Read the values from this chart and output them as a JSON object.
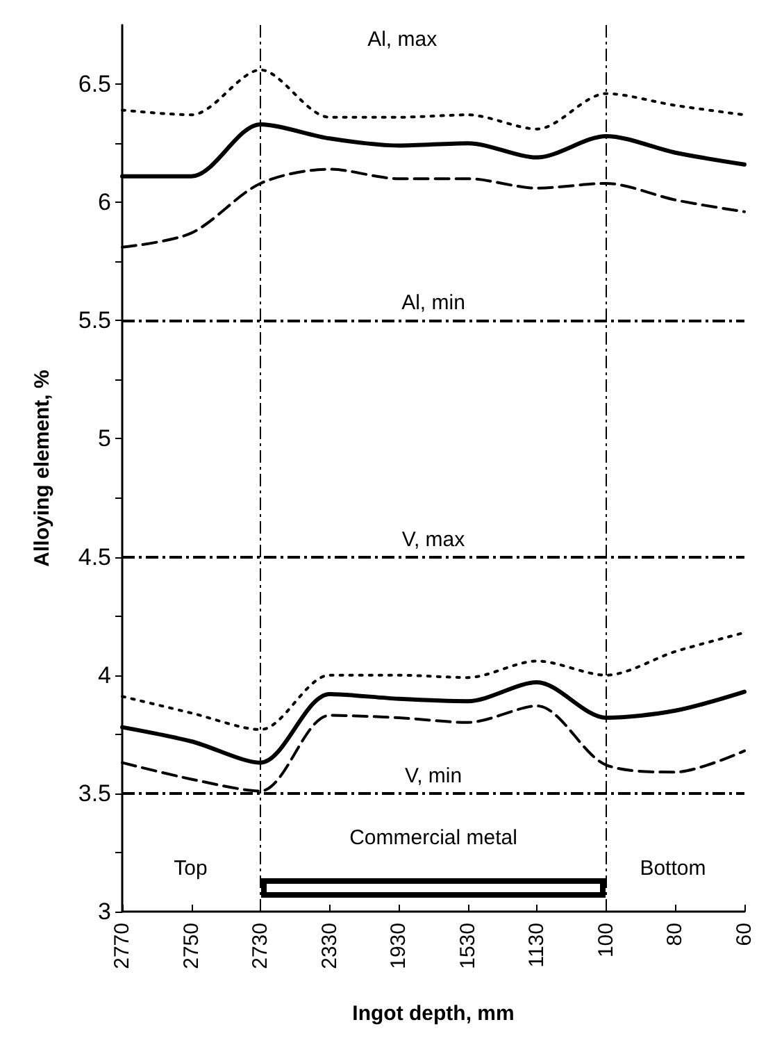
{
  "chart_data": {
    "type": "line",
    "xlabel": "Ingot depth, mm",
    "ylabel": "Alloying element, %",
    "categories": [
      "2770",
      "2750",
      "2730",
      "2330",
      "1930",
      "1530",
      "1130",
      "100",
      "80",
      "60"
    ],
    "series": [
      {
        "color": "#000000",
        "line_style": "dotted",
        "values": [
          6.39,
          6.37,
          6.56,
          6.36,
          6.36,
          6.37,
          6.31,
          6.46,
          6.41,
          6.37
        ]
      },
      {
        "color": "#000000",
        "line_style": "solid",
        "values": [
          6.11,
          6.11,
          6.33,
          6.27,
          6.24,
          6.25,
          6.19,
          6.28,
          6.21,
          6.16
        ]
      },
      {
        "color": "#000000",
        "line_style": "dashed",
        "values": [
          5.81,
          5.87,
          6.08,
          6.14,
          6.1,
          6.1,
          6.06,
          6.08,
          6.01,
          5.96
        ]
      },
      {
        "color": "#000000",
        "line_style": "dotted",
        "values": [
          3.91,
          3.84,
          3.77,
          4.0,
          4.0,
          3.99,
          4.06,
          4.0,
          4.1,
          4.18
        ]
      },
      {
        "color": "#000000",
        "line_style": "solid",
        "values": [
          3.78,
          3.72,
          3.63,
          3.92,
          3.9,
          3.89,
          3.97,
          3.82,
          3.85,
          3.93
        ]
      },
      {
        "color": "#000000",
        "line_style": "dashed",
        "values": [
          3.63,
          3.56,
          3.51,
          3.83,
          3.82,
          3.8,
          3.87,
          3.62,
          3.59,
          3.68
        ]
      }
    ],
    "ylim": [
      3,
      6.75
    ],
    "yticks": [
      3,
      {
        "value": 3.25,
        "label": null
      },
      3.5,
      {
        "value": 3.75,
        "label": null
      },
      4,
      {
        "value": 4.25,
        "label": null
      },
      4.5,
      {
        "value": 4.75,
        "label": null
      },
      5,
      {
        "value": 5.25,
        "label": null
      },
      5.5,
      {
        "value": 5.75,
        "label": null
      },
      6,
      {
        "value": 6.25,
        "label": null
      },
      6.5
    ],
    "ref_lines": [
      {
        "axis": "y",
        "value": 5.5,
        "label": "Al, min",
        "color": "#000000",
        "line_style": "dashed"
      },
      {
        "axis": "y",
        "value": 4.5,
        "label": "V, max",
        "color": "#000000",
        "line_style": "dashed"
      },
      {
        "axis": "y",
        "value": 3.5,
        "label": "V, min",
        "color": "#000000",
        "line_style": "dashed"
      },
      {
        "axis": "x",
        "value": "2730",
        "color": "#000000",
        "line_style": "dashed"
      },
      {
        "axis": "x",
        "value": "100",
        "color": "#000000",
        "line_style": "dashed"
      }
    ],
    "annotations": [
      "Al, max",
      "Commercial metal",
      "Top",
      "Bottom"
    ],
    "marker": "none",
    "grid": false
  }
}
